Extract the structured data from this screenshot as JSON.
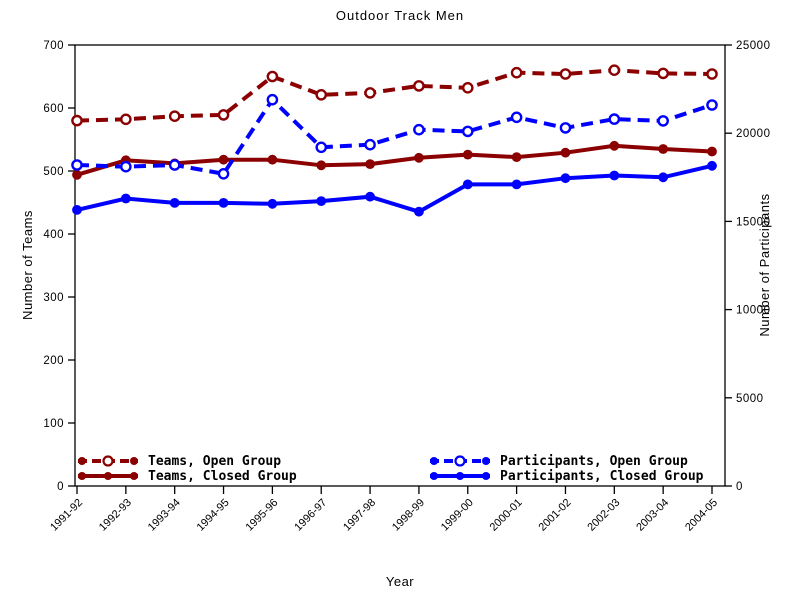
{
  "chart_data": {
    "type": "line",
    "title": "Outdoor Track Men",
    "xlabel": "Year",
    "x_categories": [
      "1991-92",
      "1992-93",
      "1993-94",
      "1994-95",
      "1995-96",
      "1996-97",
      "1997-98",
      "1998-99",
      "1999-00",
      "2000-01",
      "2001-02",
      "2002-03",
      "2003-04",
      "2004-05"
    ],
    "left_axis": {
      "label": "Number of Teams",
      "ticks": [
        0,
        100,
        200,
        300,
        400,
        500,
        600,
        700
      ],
      "range": [
        0,
        700
      ]
    },
    "right_axis": {
      "label": "Number of Participants",
      "ticks": [
        0,
        5000,
        10000,
        15000,
        20000,
        25000
      ],
      "range": [
        0,
        25000
      ]
    },
    "grid": "off",
    "legend_position": "bottom-inside",
    "series": [
      {
        "name": "Teams, Open Group",
        "axis": "left",
        "color": "#8B0000",
        "line": "dashed",
        "marker": "open",
        "values": [
          580,
          582,
          587,
          589,
          650,
          621,
          624,
          635,
          632,
          656,
          654,
          660,
          655,
          654
        ]
      },
      {
        "name": "Teams, Closed Group",
        "axis": "left",
        "color": "#8B0000",
        "line": "solid",
        "marker": "filled",
        "values": [
          494,
          517,
          512,
          518,
          518,
          509,
          511,
          521,
          526,
          522,
          529,
          540,
          535,
          531
        ]
      },
      {
        "name": "Participants, Open Group",
        "axis": "right",
        "color": "#0000FF",
        "line": "dashed",
        "marker": "open",
        "values": [
          18200,
          18100,
          18200,
          17700,
          21900,
          19200,
          19350,
          20200,
          20100,
          20900,
          20300,
          20800,
          20700,
          21600
        ]
      },
      {
        "name": "Participants, Closed Group",
        "axis": "right",
        "color": "#0000FF",
        "line": "solid",
        "marker": "filled",
        "values": [
          15650,
          16300,
          16050,
          16050,
          16000,
          16150,
          16400,
          15550,
          17100,
          17100,
          17450,
          17600,
          17500,
          18150
        ]
      }
    ]
  }
}
